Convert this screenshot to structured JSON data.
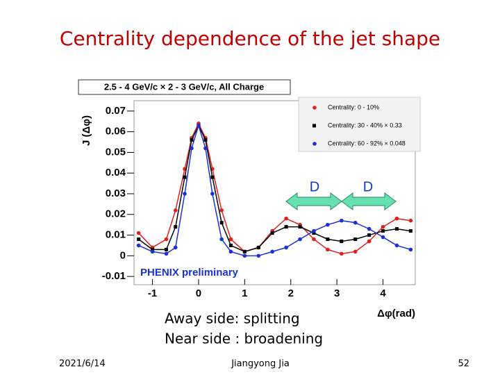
{
  "slide_title": "Centrality dependence of the jet shape",
  "chart_data": {
    "type": "line",
    "title": "2.5 - 4 GeV/c × 2 - 3 GeV/c,  All Charge",
    "y_label": "J (Δφ)",
    "x_label": "Δφ(rad)",
    "annotations": [
      "PHENIX preliminary",
      "D",
      "D"
    ],
    "x": [
      -1.3,
      -1.0,
      -0.7,
      -0.5,
      -0.3,
      -0.15,
      0,
      0.15,
      0.3,
      0.5,
      0.7,
      1.0,
      1.3,
      1.6,
      1.9,
      2.2,
      2.5,
      2.8,
      3.1,
      3.4,
      3.7,
      4.0,
      4.3,
      4.6
    ],
    "series": [
      {
        "name": "Centrality:  0 - 10%",
        "color": "#e0201c",
        "marker": "circle",
        "values": [
          0.011,
          0.004,
          0.008,
          0.022,
          0.042,
          0.057,
          0.064,
          0.057,
          0.042,
          0.022,
          0.008,
          0.002,
          0.004,
          0.012,
          0.018,
          0.015,
          0.008,
          0.003,
          0.001,
          0.002,
          0.007,
          0.014,
          0.018,
          0.017
        ]
      },
      {
        "name": "Centrality: 30 - 40% × 0.33",
        "color": "#000000",
        "marker": "square",
        "values": [
          0.008,
          0.003,
          0.003,
          0.014,
          0.038,
          0.056,
          0.063,
          0.056,
          0.038,
          0.016,
          0.005,
          0.002,
          0.004,
          0.011,
          0.014,
          0.014,
          0.011,
          0.008,
          0.007,
          0.008,
          0.01,
          0.012,
          0.013,
          0.012
        ]
      },
      {
        "name": "Centrality: 60 - 92% × 0.048",
        "color": "#1a30d8",
        "marker": "circle",
        "values": [
          0.005,
          0.002,
          0.001,
          0.004,
          0.03,
          0.052,
          0.063,
          0.052,
          0.03,
          0.008,
          0.002,
          0.0,
          0.0,
          0.002,
          0.004,
          0.008,
          0.012,
          0.015,
          0.017,
          0.016,
          0.013,
          0.009,
          0.005,
          0.003
        ]
      }
    ],
    "xlim": [
      -1.4,
      4.7
    ],
    "xticks": [
      -1,
      0,
      1,
      2,
      3,
      4
    ],
    "ylim": [
      -0.014,
      0.075
    ],
    "yticks": [
      -0.01,
      0,
      0.01,
      0.02,
      0.03,
      0.04,
      0.05,
      0.06,
      0.07
    ],
    "legend": "upper right"
  },
  "notes": [
    "Away side: splitting",
    "Near side : broadening"
  ],
  "footer": {
    "date": "2021/6/14",
    "author": "Jiangyong Jia",
    "page": "52"
  }
}
